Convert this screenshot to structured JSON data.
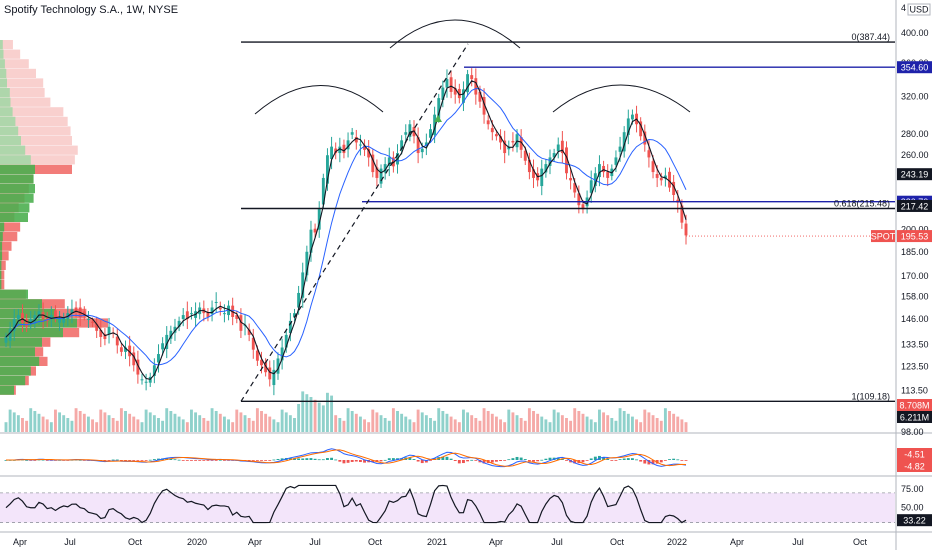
{
  "header": {
    "symbol_title": "Spotify Technology S.A., 1W, NYSE",
    "currency": "USD",
    "scale_number": "4"
  },
  "colors": {
    "up": "#26a69a",
    "down": "#ef5350",
    "vol_up": "#8fd1cb",
    "vol_down": "#f5a9a7",
    "ema": "#131722",
    "ma": "#2962ff",
    "macd": "#2962ff",
    "signal": "#ff6d00",
    "rsi": "#131722",
    "rsi_band": "#f3e5fa"
  },
  "chart_data": [
    {
      "type": "candlestick",
      "title": "Spotify Technology S.A., 1W, NYSE",
      "price_scale": "log",
      "ylim": [
        98,
        440
      ],
      "x_tick_labels": [
        "Apr",
        "Jul",
        "Oct",
        "2020",
        "Apr",
        "Jul",
        "Oct",
        "2021",
        "Apr",
        "Jul",
        "Oct",
        "2022",
        "Apr",
        "Jul",
        "Oct"
      ],
      "y_tick_labels": [
        "98.00",
        "113.50",
        "123.50",
        "133.50",
        "146.00",
        "158.00",
        "170.00",
        "185.00",
        "200.00",
        "260.00",
        "280.00",
        "320.00",
        "360.00",
        "400.00"
      ],
      "last_price": 195.53,
      "levels": [
        {
          "label": "0(387.44)",
          "value": 387.44
        },
        {
          "label": "354.60",
          "value": 354.6
        },
        {
          "label": "243.19",
          "value": 243.19
        },
        {
          "label": "220.70",
          "value": 220.7
        },
        {
          "label": "0.618(215.48)",
          "value": 215.48
        },
        {
          "label": "217.42",
          "value": 217.42
        },
        {
          "label": "1(109.18)",
          "value": 109.18
        }
      ],
      "price_tags": [
        {
          "text": "354.60",
          "value": 354.6,
          "bg": "#1e22aa",
          "fg": "#ffffff"
        },
        {
          "text": "243.19",
          "value": 243.19,
          "bg": "#131722",
          "fg": "#ffffff"
        },
        {
          "text": "220.70",
          "value": 220.7,
          "bg": "#1e22aa",
          "fg": "#ffffff"
        },
        {
          "text": "217.42",
          "value": 217.42,
          "bg": "#131722",
          "fg": "#ffffff"
        },
        {
          "text": "195.53",
          "value": 195.53,
          "bg": "#ef5350",
          "fg": "#ffffff"
        }
      ],
      "symbol_tag": "SPOT",
      "weekly_close": [
        137,
        141,
        146,
        148,
        144,
        142,
        146,
        148,
        150,
        146,
        145,
        148,
        147,
        146,
        147,
        149,
        151,
        150,
        147,
        148,
        146,
        144,
        140,
        137,
        136,
        142,
        139,
        133,
        130,
        132,
        128,
        124,
        120,
        118,
        117,
        119,
        124,
        129,
        134,
        138,
        140,
        142,
        145,
        148,
        146,
        149,
        150,
        152,
        149,
        147,
        152,
        155,
        151,
        149,
        153,
        147,
        146,
        140,
        143,
        138,
        131,
        126,
        124,
        121,
        118,
        122,
        127,
        132,
        138,
        145,
        149,
        160,
        172,
        185,
        200,
        198,
        215,
        240,
        260,
        268,
        262,
        268,
        262,
        274,
        282,
        272,
        270,
        265,
        258,
        245,
        240,
        248,
        252,
        258,
        250,
        262,
        274,
        282,
        290,
        278,
        262,
        266,
        272,
        285,
        300,
        318,
        330,
        340,
        325,
        322,
        318,
        328,
        346,
        340,
        322,
        314,
        300,
        290,
        282,
        278,
        272,
        262,
        268,
        272,
        280,
        265,
        255,
        245,
        240,
        238,
        248,
        252,
        258,
        262,
        270,
        262,
        244,
        238,
        228,
        218,
        215,
        224,
        238,
        244,
        252,
        245,
        240,
        248,
        258,
        268,
        282,
        296,
        300,
        290,
        278,
        270,
        258,
        245,
        240,
        238,
        242,
        232,
        226,
        220,
        205,
        196
      ],
      "rsi_ticks": [
        "75.00",
        "50.00",
        "33.22"
      ],
      "rsi_last": 33.22,
      "macd_last": [
        -4.51,
        -4.82
      ],
      "volume_last": [
        "8.708M",
        "6.211M"
      ]
    }
  ]
}
